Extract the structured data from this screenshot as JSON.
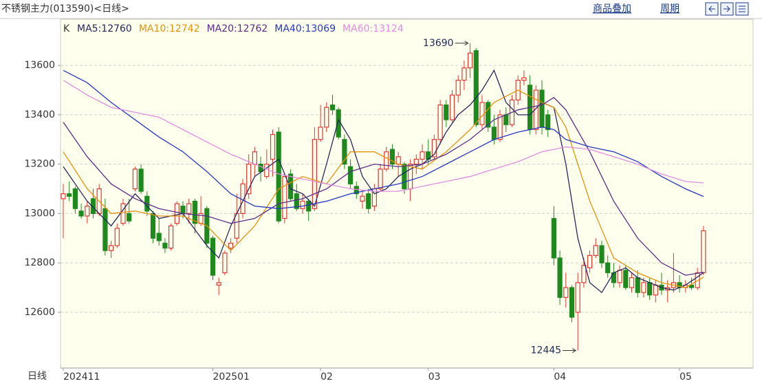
{
  "chart_data": {
    "type": "candlestick",
    "title": "不锈钢主力(013590)<日线>",
    "buttons": [
      "商品叠加",
      "周期"
    ],
    "price_label": "K",
    "xlabel": "日线",
    "up_color": "#e8332c",
    "down_color": "#1e8a1e",
    "grid": true,
    "ylim": [
      12374,
      13787
    ],
    "yticks": [
      12600,
      12800,
      13000,
      13200,
      13400,
      13600
    ],
    "max_label": 13690,
    "min_label": 12445,
    "categories": [
      "202411",
      null,
      null,
      null,
      null,
      null,
      null,
      null,
      null,
      null,
      null,
      null,
      null,
      null,
      null,
      null,
      null,
      null,
      null,
      null,
      null,
      null,
      null,
      null,
      null,
      "202501",
      null,
      null,
      null,
      null,
      null,
      null,
      null,
      null,
      null,
      null,
      null,
      null,
      null,
      null,
      null,
      null,
      null,
      "02",
      null,
      null,
      null,
      null,
      null,
      null,
      null,
      null,
      null,
      null,
      null,
      null,
      null,
      null,
      null,
      null,
      null,
      "03",
      null,
      null,
      null,
      null,
      null,
      null,
      null,
      null,
      null,
      null,
      null,
      null,
      null,
      null,
      null,
      null,
      null,
      null,
      null,
      null,
      "04",
      null,
      null,
      null,
      null,
      null,
      null,
      null,
      null,
      null,
      null,
      null,
      null,
      null,
      null,
      null,
      null,
      null,
      null,
      null,
      null,
      "05",
      null,
      null,
      null,
      null
    ],
    "open": [
      13060,
      13080,
      13100,
      13010,
      12990,
      13060,
      13000,
      13020,
      12850,
      12870,
      12960,
      13000,
      13100,
      13180,
      13070,
      13000,
      12920,
      12880,
      12860,
      12960,
      13030,
      13000,
      13050,
      12960,
      13020,
      12900,
      12710,
      12760,
      12860,
      12900,
      13000,
      13080,
      13200,
      13200,
      13150,
      13220,
      13330,
      12980,
      13160,
      13080,
      13020,
      13050,
      13020,
      13300,
      13350,
      13440,
      13420,
      13300,
      13190,
      13110,
      13050,
      13080,
      13030,
      13100,
      13180,
      13260,
      13200,
      13200,
      13100,
      13200,
      13220,
      13250,
      13230,
      13300,
      13440,
      13380,
      13480,
      13540,
      13590,
      13660,
      13360,
      13450,
      13350,
      13300,
      13400,
      13360,
      13460,
      13540,
      13520,
      13340,
      13500,
      13400,
      12980,
      12820,
      12660,
      12700,
      12600,
      12720,
      12780,
      12830,
      12870,
      12800,
      12760,
      12720,
      12770,
      12700,
      12740,
      12680,
      12720,
      12670,
      12710,
      12690,
      12700,
      12720,
      12700,
      12710,
      12700,
      12760
    ],
    "high": [
      13120,
      13130,
      13110,
      13040,
      13050,
      13100,
      13120,
      13060,
      12890,
      12960,
      13060,
      13060,
      13190,
      13200,
      13090,
      13010,
      12980,
      12900,
      12960,
      13050,
      13050,
      13060,
      13060,
      13070,
      13030,
      12910,
      12740,
      12850,
      12900,
      13080,
      13140,
      13240,
      13270,
      13230,
      13260,
      13340,
      13350,
      13160,
      13180,
      13120,
      13080,
      13060,
      13350,
      13440,
      13450,
      13480,
      13430,
      13320,
      13220,
      13130,
      13090,
      13100,
      13120,
      13200,
      13270,
      13280,
      13250,
      13210,
      13220,
      13240,
      13280,
      13300,
      13320,
      13460,
      13460,
      13500,
      13560,
      13620,
      13690,
      13670,
      13480,
      13460,
      13400,
      13420,
      13430,
      13480,
      13560,
      13580,
      13560,
      13520,
      13540,
      13420,
      13030,
      12850,
      12760,
      12710,
      12760,
      12820,
      12850,
      12900,
      12890,
      12830,
      12800,
      12790,
      12790,
      12760,
      12770,
      12740,
      12740,
      12730,
      12760,
      12730,
      12840,
      12750,
      12730,
      12740,
      12780,
      12950
    ],
    "low": [
      12900,
      13050,
      13000,
      12980,
      12960,
      12980,
      12990,
      12830,
      12820,
      12860,
      12950,
      12960,
      13090,
      13080,
      12990,
      12880,
      12870,
      12840,
      12850,
      12950,
      12980,
      12960,
      12920,
      12950,
      12860,
      12730,
      12670,
      12750,
      12840,
      12880,
      12980,
      13060,
      13150,
      13130,
      13140,
      13150,
      12960,
      12960,
      13050,
      13010,
      13000,
      12970,
      13010,
      13290,
      13330,
      13400,
      13300,
      13180,
      13100,
      13060,
      13020,
      13000,
      13010,
      13090,
      13170,
      13180,
      13150,
      13080,
      13050,
      13160,
      13180,
      13200,
      13220,
      13280,
      13350,
      13370,
      13450,
      13500,
      13550,
      13350,
      13340,
      13330,
      13280,
      13290,
      13330,
      13350,
      13440,
      13520,
      13320,
      13320,
      13320,
      13310,
      12790,
      12630,
      12620,
      12560,
      12445,
      12700,
      12760,
      12820,
      12780,
      12740,
      12700,
      12700,
      12690,
      12680,
      12660,
      12660,
      12650,
      12640,
      12670,
      12640,
      12680,
      12680,
      12680,
      12690,
      12690,
      12750
    ],
    "close": [
      13080,
      13070,
      13020,
      12990,
      13030,
      13000,
      13100,
      12850,
      12870,
      12940,
      13040,
      12970,
      13180,
      13090,
      13010,
      12900,
      12890,
      12860,
      12950,
      13040,
      13000,
      13040,
      12960,
      13000,
      12880,
      12750,
      12720,
      12840,
      12880,
      13000,
      13120,
      13200,
      13250,
      13170,
      13200,
      13320,
      12970,
      13150,
      13060,
      13020,
      13050,
      13010,
      13300,
      13350,
      13430,
      13420,
      13310,
      13200,
      13120,
      13080,
      13070,
      13020,
      13100,
      13180,
      13250,
      13200,
      13230,
      13100,
      13200,
      13220,
      13250,
      13220,
      13300,
      13440,
      13380,
      13480,
      13540,
      13590,
      13650,
      13360,
      13450,
      13350,
      13300,
      13400,
      13360,
      13460,
      13540,
      13550,
      13340,
      13500,
      13350,
      13340,
      12820,
      12660,
      12700,
      12580,
      12720,
      12790,
      12830,
      12870,
      12800,
      12760,
      12720,
      12770,
      12700,
      12740,
      12680,
      12720,
      12670,
      12710,
      12690,
      12700,
      12720,
      12700,
      12710,
      12700,
      12760,
      12930
    ],
    "series": [
      {
        "name": "MA5:12760",
        "color": "#26265e",
        "x": [
          0,
          4,
          8,
          12,
          16,
          20,
          24,
          26,
          28,
          32,
          36,
          38,
          40,
          42,
          44,
          46,
          48,
          50,
          52,
          54,
          56,
          58,
          60,
          62,
          64,
          66,
          68,
          70,
          72,
          74,
          76,
          78,
          80,
          82,
          84,
          86,
          88,
          90,
          92,
          94,
          96,
          98,
          100,
          102,
          104,
          107
        ],
        "values": [
          13190,
          13050,
          12950,
          13080,
          12980,
          13000,
          12870,
          12820,
          12950,
          13150,
          13220,
          13100,
          13080,
          13030,
          13200,
          13380,
          13300,
          13150,
          13080,
          13100,
          13150,
          13180,
          13200,
          13240,
          13330,
          13400,
          13440,
          13500,
          13580,
          13450,
          13400,
          13400,
          13450,
          13430,
          13200,
          12900,
          12720,
          12680,
          12760,
          12780,
          12740,
          12720,
          12700,
          12690,
          12710,
          12760
        ]
      },
      {
        "name": "MA10:12742",
        "color": "#e8900a",
        "x": [
          0,
          4,
          8,
          12,
          16,
          20,
          24,
          28,
          32,
          36,
          40,
          44,
          48,
          52,
          56,
          60,
          64,
          68,
          72,
          76,
          80,
          82,
          84,
          88,
          92,
          96,
          100,
          104,
          107
        ],
        "values": [
          13250,
          13100,
          13000,
          13010,
          12990,
          12990,
          12950,
          12850,
          12950,
          13100,
          13150,
          13120,
          13250,
          13250,
          13200,
          13180,
          13250,
          13340,
          13450,
          13500,
          13450,
          13430,
          13350,
          13050,
          12820,
          12760,
          12720,
          12700,
          12742
        ]
      },
      {
        "name": "MA20:12762",
        "color": "#5a2a8a",
        "x": [
          0,
          4,
          8,
          12,
          16,
          20,
          24,
          28,
          32,
          36,
          40,
          44,
          48,
          52,
          56,
          60,
          64,
          68,
          72,
          76,
          80,
          82,
          84,
          88,
          92,
          96,
          100,
          104,
          107
        ],
        "values": [
          13370,
          13230,
          13120,
          13060,
          13020,
          13000,
          12990,
          12960,
          12980,
          13040,
          13060,
          13100,
          13170,
          13200,
          13190,
          13200,
          13240,
          13300,
          13380,
          13420,
          13440,
          13470,
          13420,
          13250,
          13050,
          12900,
          12800,
          12750,
          12762
        ]
      },
      {
        "name": "MA40:13069",
        "color": "#2438c0",
        "x": [
          0,
          4,
          8,
          12,
          16,
          20,
          24,
          28,
          32,
          36,
          40,
          44,
          48,
          52,
          56,
          60,
          64,
          68,
          72,
          76,
          80,
          82,
          84,
          88,
          92,
          96,
          100,
          104,
          107
        ],
        "values": [
          13580,
          13530,
          13450,
          13380,
          13310,
          13250,
          13170,
          13080,
          13030,
          13020,
          13030,
          13050,
          13080,
          13100,
          13120,
          13150,
          13200,
          13250,
          13300,
          13330,
          13350,
          13340,
          13300,
          13270,
          13250,
          13210,
          13150,
          13100,
          13069
        ]
      },
      {
        "name": "MA60:13124",
        "color": "#e28ae2",
        "x": [
          0,
          4,
          8,
          12,
          16,
          20,
          24,
          28,
          32,
          36,
          40,
          44,
          48,
          52,
          56,
          60,
          64,
          68,
          72,
          76,
          80,
          84,
          88,
          92,
          96,
          100,
          104,
          107
        ],
        "values": [
          13540,
          13480,
          13430,
          13410,
          13390,
          13340,
          13290,
          13240,
          13200,
          13160,
          13140,
          13120,
          13100,
          13090,
          13090,
          13110,
          13130,
          13150,
          13180,
          13210,
          13250,
          13270,
          13260,
          13230,
          13200,
          13160,
          13130,
          13124
        ]
      }
    ]
  }
}
